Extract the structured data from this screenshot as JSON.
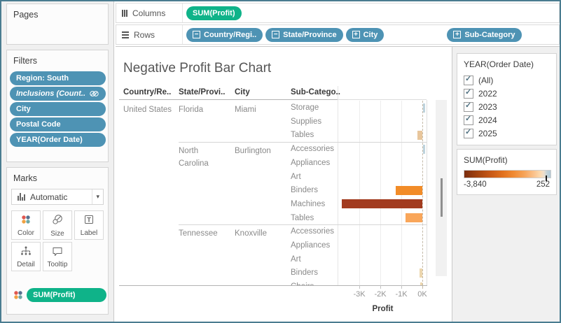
{
  "window": {
    "border_color": "#4a7c90"
  },
  "pages": {
    "title": "Pages"
  },
  "filters": {
    "title": "Filters",
    "pills": [
      {
        "label": "Region: South",
        "italic": false,
        "icon": null
      },
      {
        "label": "Inclusions (Count..",
        "italic": true,
        "icon": "set-icon"
      },
      {
        "label": "City",
        "italic": false,
        "icon": null
      },
      {
        "label": "Postal Code",
        "italic": false,
        "icon": null
      },
      {
        "label": "YEAR(Order Date)",
        "italic": false,
        "icon": null
      }
    ]
  },
  "marks": {
    "title": "Marks",
    "mark_type": "Automatic",
    "buttons": [
      {
        "label": "Color",
        "icon": "color-icon"
      },
      {
        "label": "Size",
        "icon": "size-icon"
      },
      {
        "label": "Label",
        "icon": "label-icon"
      },
      {
        "label": "Detail",
        "icon": "detail-icon"
      },
      {
        "label": "Tooltip",
        "icon": "tooltip-icon"
      }
    ],
    "encoding_pill": {
      "label": "SUM(Profit)",
      "kind": "measure"
    }
  },
  "shelves": {
    "columns": {
      "label": "Columns",
      "pills": [
        {
          "label": "SUM(Profit)",
          "kind": "measure"
        }
      ]
    },
    "rows": {
      "label": "Rows",
      "pills": [
        {
          "label": "Country/Regi..",
          "expand": "minus",
          "gap_before": false
        },
        {
          "label": "State/Province",
          "expand": "minus",
          "gap_before": false
        },
        {
          "label": "City",
          "expand": "plus",
          "gap_before": false
        },
        {
          "label": "Sub-Category",
          "expand": "plus",
          "gap_before": true
        }
      ]
    }
  },
  "sheet": {
    "title": "Negative Profit Bar Chart",
    "column_headers": [
      "Country/Re..",
      "State/Provi..",
      "City",
      "Sub-Catego.."
    ],
    "country": "United States"
  },
  "chart_data": {
    "type": "bar",
    "orientation": "horizontal",
    "title": "Negative Profit Bar Chart",
    "xlabel": "Profit",
    "x_ticks": [
      {
        "label": "-3K",
        "value": -3000
      },
      {
        "label": "-2K",
        "value": -2000
      },
      {
        "label": "-1K",
        "value": -1000
      },
      {
        "label": "0K",
        "value": 0
      }
    ],
    "x_axis_range": [
      -4150,
      200
    ],
    "sections": [
      {
        "state": "Florida",
        "city": "Miami",
        "rows": [
          {
            "sub_category": "Storage",
            "profit": 100,
            "color": "#bfd4de"
          },
          {
            "sub_category": "Supplies",
            "profit": -20,
            "color": "#efd9bd"
          },
          {
            "sub_category": "Tables",
            "profit": -250,
            "color": "#e8c69c"
          }
        ]
      },
      {
        "state": "North Carolina",
        "city": "Burlington",
        "rows": [
          {
            "sub_category": "Accessories",
            "profit": 90,
            "color": "#bfd4de"
          },
          {
            "sub_category": "Appliances",
            "profit": -20,
            "color": "#efd9bd"
          },
          {
            "sub_category": "Art",
            "profit": -20,
            "color": "#efd9bd"
          },
          {
            "sub_category": "Binders",
            "profit": -1270,
            "color": "#f28c28"
          },
          {
            "sub_category": "Machines",
            "profit": -3840,
            "color": "#a23b1f"
          },
          {
            "sub_category": "Tables",
            "profit": -800,
            "color": "#f9a65a"
          }
        ]
      },
      {
        "state": "Tennessee",
        "city": "Knoxville",
        "rows": [
          {
            "sub_category": "Accessories",
            "profit": -15,
            "color": "#efd9bd"
          },
          {
            "sub_category": "Appliances",
            "profit": -20,
            "color": "#efd9bd"
          },
          {
            "sub_category": "Art",
            "profit": -15,
            "color": "#efd9bd"
          },
          {
            "sub_category": "Binders",
            "profit": -130,
            "color": "#ecd6ae"
          },
          {
            "sub_category": "Chairs",
            "profit": -100,
            "color": "#ecd6ae",
            "clipped": true
          }
        ]
      }
    ]
  },
  "year_filter": {
    "title": "YEAR(Order Date)",
    "options": [
      {
        "label": "(All)",
        "checked": true
      },
      {
        "label": "2022",
        "checked": true
      },
      {
        "label": "2023",
        "checked": true
      },
      {
        "label": "2024",
        "checked": true
      },
      {
        "label": "2025",
        "checked": true
      }
    ]
  },
  "legend": {
    "title": "SUM(Profit)",
    "min_label": "-3,840",
    "max_label": "252",
    "min_value": -3840,
    "max_value": 252,
    "gradient": [
      "#7b2d0f",
      "#c65817",
      "#f08a33",
      "#fbd9ae",
      "#b0cad9"
    ]
  }
}
